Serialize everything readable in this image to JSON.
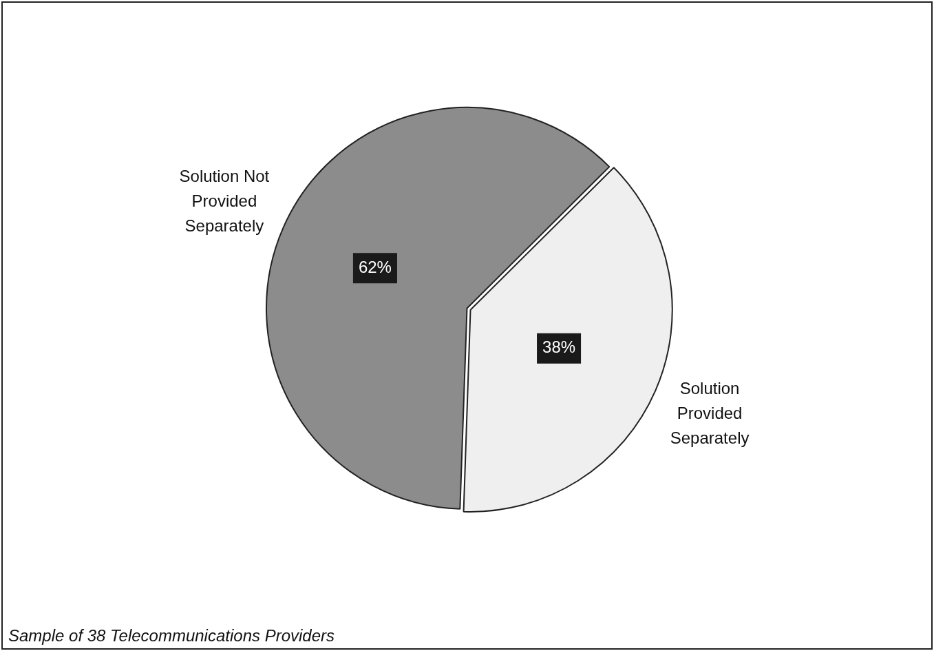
{
  "chart_data": {
    "type": "pie",
    "categories": [
      "Solution Not Provided Separately",
      "Solution Provided Separately"
    ],
    "values": [
      62,
      38
    ],
    "colors": [
      "#8c8c8c",
      "#efefef"
    ],
    "value_labels": [
      "62%",
      "38%"
    ],
    "annotations": [
      "Sample of 38 Telecommunications Providers"
    ]
  }
}
